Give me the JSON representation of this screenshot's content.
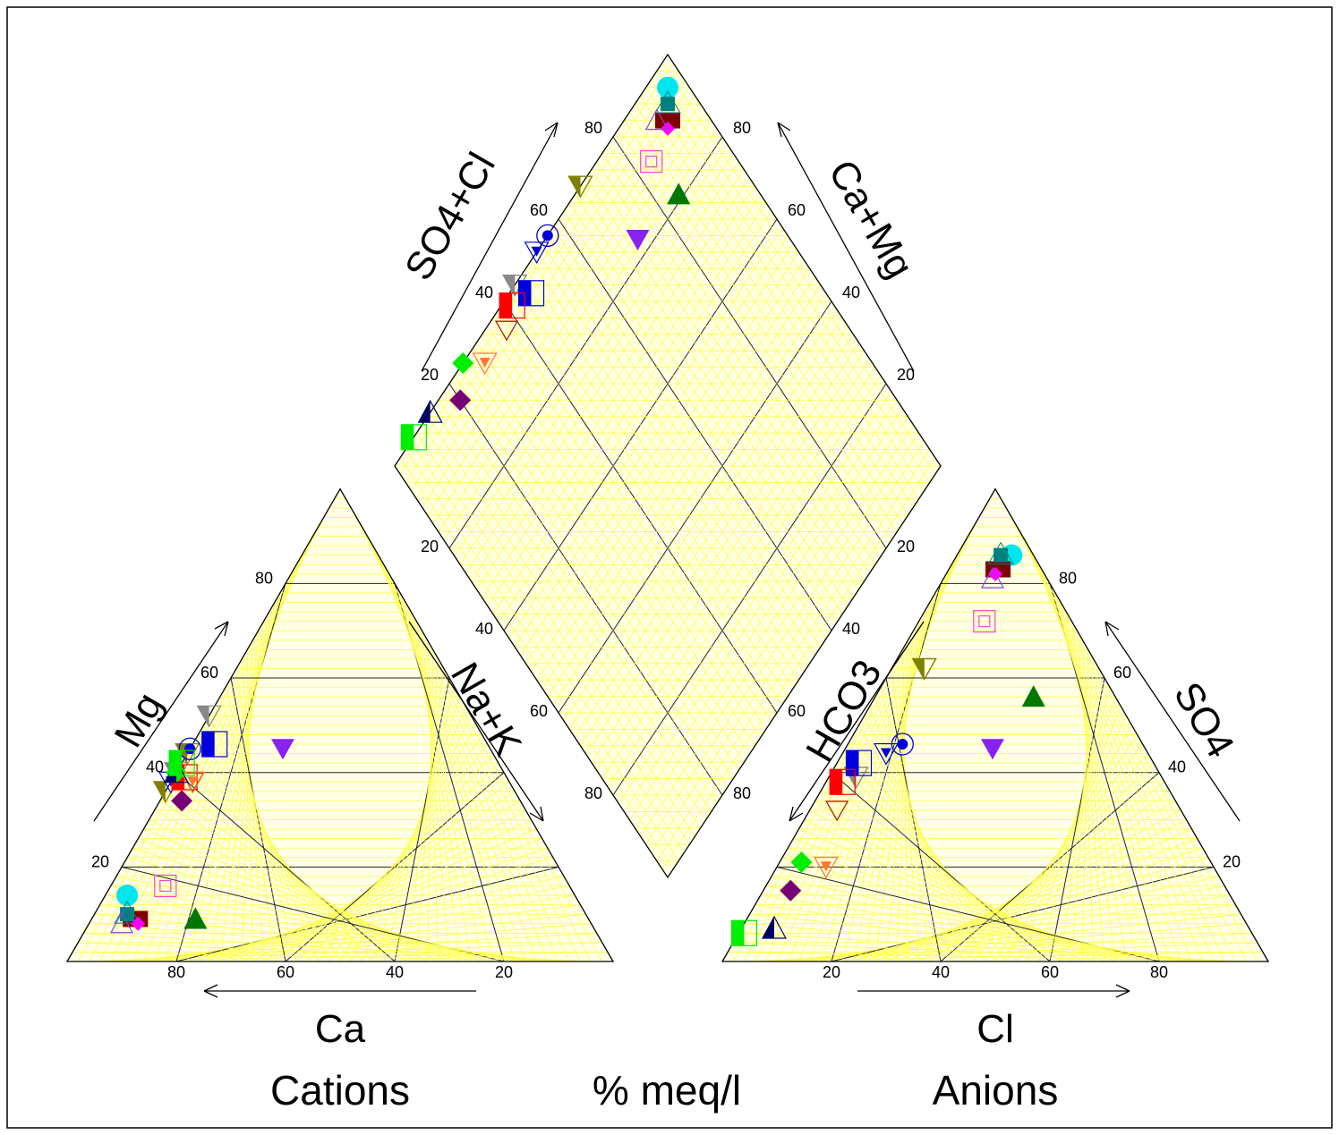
{
  "chart_data": {
    "type": "piper",
    "units": "% meq/l",
    "labels": {
      "cation_left_axis": "Mg",
      "cation_right_axis": "Na+K",
      "cation_bottom_axis": "Ca",
      "anion_left_axis": "HCO3",
      "anion_right_axis": "SO4",
      "anion_bottom_axis": "Cl",
      "diamond_upper_left_axis": "SO4+Cl",
      "diamond_upper_right_axis": "Ca+Mg",
      "cations_caption": "Cations",
      "anions_caption": "Anions",
      "units_caption": "% meq/l"
    },
    "ticks": {
      "cation_bottom": [
        "80",
        "60",
        "40",
        "20"
      ],
      "cation_left": [
        "20",
        "40",
        "60",
        "80"
      ],
      "anion_bottom": [
        "20",
        "40",
        "60",
        "80"
      ],
      "anion_right": [
        "20",
        "40",
        "60",
        "80"
      ],
      "diamond_upper_left": [
        "20",
        "40",
        "60",
        "80"
      ],
      "diamond_upper_right": [
        "20",
        "40",
        "60",
        "80"
      ],
      "diamond_lower_left": [
        "20",
        "40",
        "60",
        "80"
      ],
      "diamond_lower_right": [
        "20",
        "40",
        "60",
        "80"
      ]
    },
    "grid": true,
    "colors": {
      "frame": "#000000",
      "fill": "#ffffe6",
      "minor_grid": "#ffff4d",
      "major_grid": "#222222"
    },
    "samples": [
      {
        "marker": "cyan-filled-circle",
        "color": "#00e5ee",
        "Ca": 82,
        "Mg": 14,
        "NaK": 4,
        "Cl": 10,
        "SO4": 86,
        "HCO3": 4
      },
      {
        "marker": "magenta-double-square",
        "color": "#ff44cc",
        "Ca": 74,
        "Mg": 16,
        "NaK": 10,
        "Cl": 12,
        "SO4": 72,
        "HCO3": 16
      },
      {
        "marker": "darkgreen-filled-triangle",
        "color": "#007700",
        "Ca": 72,
        "Mg": 9,
        "NaK": 19,
        "Cl": 29,
        "SO4": 56,
        "HCO3": 15
      },
      {
        "marker": "maroon-filled-rectangle",
        "color": "#800000",
        "Ca": 83,
        "Mg": 9,
        "NaK": 8,
        "Cl": 9,
        "SO4": 83,
        "HCO3": 8
      },
      {
        "marker": "teal-cluster",
        "color": "#008080",
        "Ca": 84,
        "Mg": 10,
        "NaK": 6,
        "Cl": 8,
        "SO4": 86,
        "HCO3": 6
      },
      {
        "marker": "magenta-small-diamond",
        "color": "#ff00ff",
        "Ca": 83,
        "Mg": 8,
        "NaK": 9,
        "Cl": 9,
        "SO4": 82,
        "HCO3": 9
      },
      {
        "marker": "purple-open-triangle",
        "color": "#8844cc",
        "Ca": 86,
        "Mg": 8,
        "NaK": 6,
        "Cl": 9,
        "SO4": 81,
        "HCO3": 10
      },
      {
        "marker": "olive-half-triangle-down",
        "color": "#808000",
        "Ca": 56,
        "Mg": 59,
        "NaK": -15,
        "Cl": 6,
        "SO4": 62,
        "HCO3": 32
      },
      {
        "marker": "olive-half-triangle-down",
        "color": "#808000",
        "Ca": 64,
        "Mg": 36,
        "NaK": 0,
        "Cl": 6,
        "SO4": 62,
        "HCO3": 32
      },
      {
        "marker": "gray-half-triangle-down",
        "color": "#888888",
        "Ca": 48,
        "Mg": 59,
        "NaK": -7,
        "Cl": 5,
        "SO4": 39,
        "HCO3": 56
      },
      {
        "marker": "gray-half-triangle-down",
        "color": "#888888",
        "Ca": 60,
        "Mg": 40,
        "NaK": 0,
        "Cl": 5,
        "SO4": 39,
        "HCO3": 56
      },
      {
        "marker": "blue-dot-in-circle",
        "color": "#0000dd",
        "Ca": 55,
        "Mg": 45,
        "NaK": 0,
        "Cl": 10,
        "SO4": 46,
        "HCO3": 44
      },
      {
        "marker": "blue-triangle-in-triangle",
        "color": "#0000dd",
        "Ca": 62,
        "Mg": 38,
        "NaK": 0,
        "Cl": 8,
        "SO4": 44,
        "HCO3": 48
      },
      {
        "marker": "blue-half-rectangle",
        "color": "#0000dd",
        "Ca": 50,
        "Mg": 46,
        "NaK": 4,
        "Cl": 4,
        "SO4": 42,
        "HCO3": 54
      },
      {
        "marker": "purple-filled-triangle-down",
        "color": "#8822ee",
        "Ca": 38,
        "Mg": 45,
        "NaK": 17,
        "Cl": 27,
        "SO4": 45,
        "HCO3": 28
      },
      {
        "marker": "red-half-rectangle",
        "color": "#ff0000",
        "Ca": 59,
        "Mg": 39,
        "NaK": 2,
        "Cl": 3,
        "SO4": 38,
        "HCO3": 59
      },
      {
        "marker": "brown-open-triangle-down",
        "color": "#aa2200",
        "Ca": 58,
        "Mg": 38,
        "NaK": 4,
        "Cl": 5,
        "SO4": 32,
        "HCO3": 63
      },
      {
        "marker": "lime-filled-diamond",
        "color": "#00ee00",
        "Ca": 60,
        "Mg": 40,
        "NaK": 0,
        "Cl": 4,
        "SO4": 21,
        "HCO3": 75
      },
      {
        "marker": "orange-triangle-in-triangle",
        "color": "#ff7733",
        "Ca": 58,
        "Mg": 38,
        "NaK": 4,
        "Cl": 9,
        "SO4": 20,
        "HCO3": 71
      },
      {
        "marker": "purple-filled-diamond",
        "color": "#770077",
        "Ca": 62,
        "Mg": 34,
        "NaK": 4,
        "Cl": 5,
        "SO4": 15,
        "HCO3": 80
      },
      {
        "marker": "navy-half-triangle",
        "color": "#000066",
        "Ca": 60,
        "Mg": 40,
        "NaK": 0,
        "Cl": 6,
        "SO4": 7,
        "HCO3": 87
      },
      {
        "marker": "lime-half-rectangle",
        "color": "#00ee00",
        "Ca": 58,
        "Mg": 42,
        "NaK": 0,
        "Cl": 1,
        "SO4": 6,
        "HCO3": 93
      }
    ]
  }
}
